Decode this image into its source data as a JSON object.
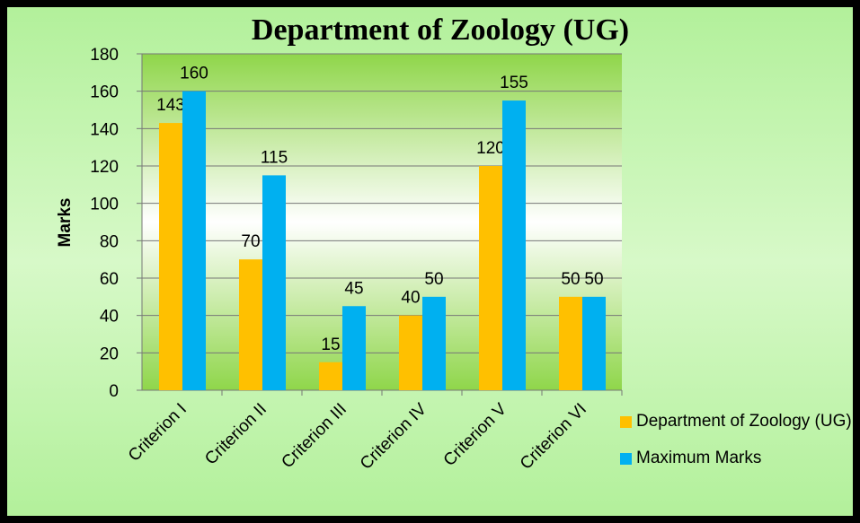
{
  "chart_data": {
    "type": "bar",
    "title": "Department of Zoology (UG)",
    "y_label": "Marks",
    "categories": [
      "Criterion I",
      "Criterion II",
      "Criterion III",
      "Criterion IV",
      "Criterion V",
      "Criterion VI"
    ],
    "series": [
      {
        "name": "Department of Zoology (UG)",
        "color": "#ffc000",
        "values": [
          143,
          70,
          15,
          40,
          120,
          50
        ]
      },
      {
        "name": "Maximum Marks",
        "color": "#00b0f0",
        "values": [
          160,
          115,
          45,
          50,
          155,
          50
        ]
      }
    ],
    "ylim": [
      0,
      180
    ],
    "yticks": [
      0,
      20,
      40,
      60,
      80,
      100,
      120,
      140,
      160,
      180
    ],
    "grid": true,
    "legend": "right"
  }
}
